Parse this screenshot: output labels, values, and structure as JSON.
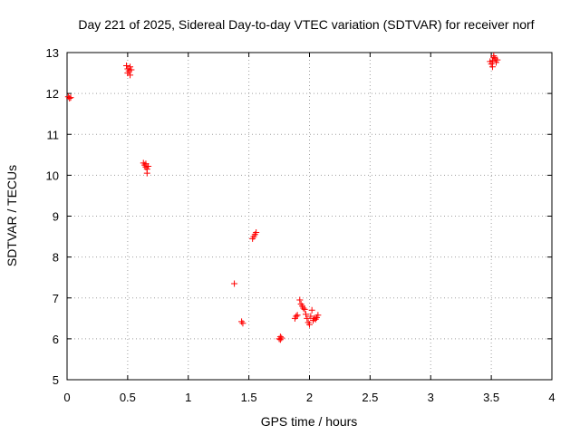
{
  "chart_data": {
    "type": "scatter",
    "title": "Day 221 of 2025, Sidereal Day-to-day VTEC variation (SDTVAR) for receiver norf",
    "xlabel": "GPS time / hours",
    "ylabel": "SDTVAR / TECUs",
    "xlim": [
      0,
      4
    ],
    "ylim": [
      5,
      13
    ],
    "grid": true,
    "x_ticks": [
      "0",
      "0.5",
      "1",
      "1.5",
      "2",
      "2.5",
      "3",
      "3.5",
      "4"
    ],
    "y_ticks": [
      "5",
      "6",
      "7",
      "8",
      "9",
      "10",
      "11",
      "12",
      "13"
    ],
    "marker": "+",
    "series": [
      {
        "name": "SDTVAR",
        "color": "#ff0000",
        "points": [
          [
            0.01,
            11.92
          ],
          [
            0.02,
            11.88
          ],
          [
            0.03,
            11.9
          ],
          [
            0.49,
            12.68
          ],
          [
            0.5,
            12.6
          ],
          [
            0.51,
            12.55
          ],
          [
            0.52,
            12.65
          ],
          [
            0.5,
            12.5
          ],
          [
            0.53,
            12.58
          ],
          [
            0.52,
            12.45
          ],
          [
            0.63,
            10.3
          ],
          [
            0.64,
            10.25
          ],
          [
            0.65,
            10.2
          ],
          [
            0.66,
            10.15
          ],
          [
            0.65,
            10.28
          ],
          [
            0.66,
            10.05
          ],
          [
            0.67,
            10.22
          ],
          [
            1.38,
            7.35
          ],
          [
            1.44,
            6.42
          ],
          [
            1.45,
            6.38
          ],
          [
            1.53,
            8.45
          ],
          [
            1.54,
            8.5
          ],
          [
            1.55,
            8.55
          ],
          [
            1.56,
            8.6
          ],
          [
            1.75,
            6.0
          ],
          [
            1.76,
            5.98
          ],
          [
            1.77,
            6.02
          ],
          [
            1.76,
            6.05
          ],
          [
            1.88,
            6.5
          ],
          [
            1.89,
            6.55
          ],
          [
            1.9,
            6.58
          ],
          [
            1.92,
            6.95
          ],
          [
            1.93,
            6.85
          ],
          [
            1.94,
            6.8
          ],
          [
            1.95,
            6.75
          ],
          [
            1.96,
            6.72
          ],
          [
            1.97,
            6.6
          ],
          [
            1.98,
            6.5
          ],
          [
            1.99,
            6.4
          ],
          [
            2.0,
            6.35
          ],
          [
            2.01,
            6.55
          ],
          [
            2.02,
            6.7
          ],
          [
            2.03,
            6.45
          ],
          [
            2.04,
            6.5
          ],
          [
            2.05,
            6.48
          ],
          [
            2.06,
            6.52
          ],
          [
            2.07,
            6.58
          ],
          [
            3.49,
            12.78
          ],
          [
            3.5,
            12.72
          ],
          [
            3.51,
            12.8
          ],
          [
            3.52,
            12.88
          ],
          [
            3.53,
            12.85
          ],
          [
            3.54,
            12.76
          ],
          [
            3.55,
            12.82
          ],
          [
            3.51,
            12.65
          ],
          [
            3.52,
            12.92
          ]
        ]
      }
    ]
  }
}
